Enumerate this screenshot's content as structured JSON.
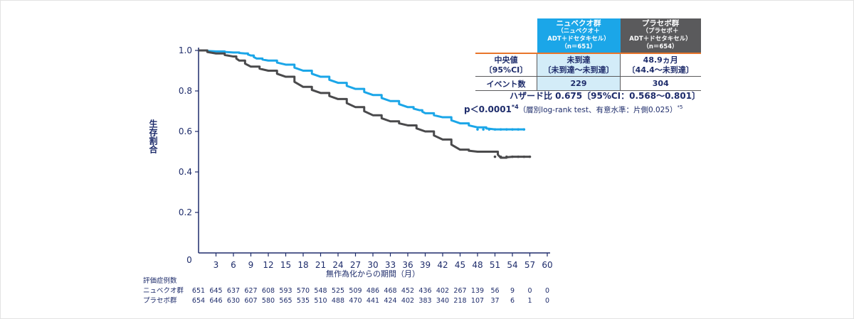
{
  "chart_data": {
    "type": "line",
    "title": "",
    "ylabel": "生存割合",
    "xlabel": "無作為化からの期間（月）",
    "y_ticks": [
      "1.0",
      "0.8",
      "0.6",
      "0.4",
      "0.2"
    ],
    "y_origin_label": "0",
    "x_ticks": [
      3,
      6,
      9,
      12,
      15,
      18,
      21,
      24,
      27,
      30,
      33,
      36,
      39,
      42,
      45,
      48,
      51,
      54,
      57,
      60
    ],
    "xlim": [
      0,
      60
    ],
    "ylim": [
      0,
      1.0
    ],
    "series": [
      {
        "name": "ニュベクオ群",
        "color": "#1ba6e8",
        "x": [
          0,
          3,
          6,
          8,
          9,
          10,
          12,
          15,
          18,
          21,
          24,
          27,
          30,
          33,
          36,
          38,
          39,
          42,
          45,
          48,
          51,
          54,
          56
        ],
        "y": [
          1.0,
          0.995,
          0.99,
          0.985,
          0.975,
          0.96,
          0.95,
          0.93,
          0.9,
          0.87,
          0.84,
          0.81,
          0.78,
          0.75,
          0.72,
          0.705,
          0.69,
          0.67,
          0.64,
          0.62,
          0.61,
          0.61,
          0.61
        ]
      },
      {
        "name": "プラセボ群",
        "color": "#4a4a4c",
        "x": [
          0,
          3,
          6,
          7,
          9,
          12,
          15,
          18,
          21,
          24,
          27,
          30,
          33,
          36,
          39,
          42,
          45,
          48,
          51,
          52,
          54,
          57
        ],
        "y": [
          1.0,
          0.985,
          0.97,
          0.95,
          0.92,
          0.9,
          0.87,
          0.82,
          0.79,
          0.76,
          0.72,
          0.68,
          0.65,
          0.63,
          0.6,
          0.56,
          0.51,
          0.5,
          0.5,
          0.47,
          0.475,
          0.475
        ]
      }
    ],
    "risk_table": {
      "title": "評価症例数",
      "rows": [
        {
          "label": "ニュベクオ群",
          "values": [
            "651",
            "645",
            "637",
            "627",
            "608",
            "593",
            "570",
            "548",
            "525",
            "509",
            "486",
            "468",
            "452",
            "436",
            "402",
            "267",
            "139",
            "56",
            "9",
            "0",
            "0"
          ]
        },
        {
          "label": "プラセボ群",
          "values": [
            "654",
            "646",
            "630",
            "607",
            "580",
            "565",
            "535",
            "510",
            "488",
            "470",
            "441",
            "424",
            "402",
            "383",
            "340",
            "218",
            "107",
            "37",
            "6",
            "1",
            "0"
          ]
        }
      ]
    },
    "summary_table": {
      "nivo_header": "ニュベクオ群",
      "nivo_sub1": "（ニュベクオ＋",
      "nivo_sub2": "ADT＋ドセタキセル）",
      "nivo_n": "（n＝651）",
      "plac_header": "プラセボ群",
      "plac_sub1": "（プラセボ＋",
      "plac_sub2": "ADT＋ドセタキセル）",
      "plac_n": "（n＝654）",
      "median_label1": "中央値",
      "median_label2": "〔95%CI〕",
      "median_nivo1": "未到達",
      "median_nivo2": "〔未到達～未到達〕",
      "median_plac1": "48.9ヵ月",
      "median_plac2": "〔44.4～未到達〕",
      "events_label": "イベント数",
      "events_nivo": "229",
      "events_plac": "304"
    },
    "hazard_text": "ハザード比 0.675〔95%CI：0.568～0.801〕",
    "p_main": "p＜0.0001",
    "p_sup": "*4",
    "p_note": "（層別log-rank test、有意水準：片側0.025）",
    "p_note_sup": "*5"
  }
}
